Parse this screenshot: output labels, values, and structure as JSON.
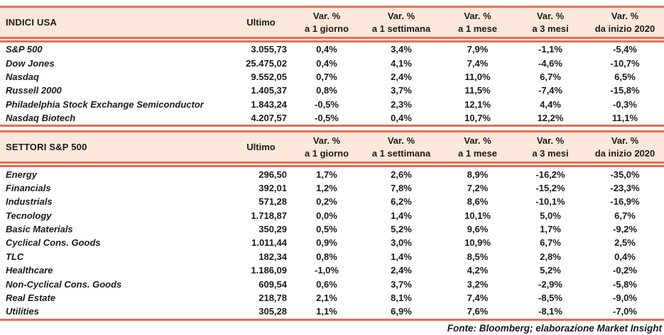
{
  "accent": {
    "line_color": "#ee6b4e",
    "header_bg": "#fbe8da",
    "text_color": "#1a1a1a"
  },
  "columns": {
    "value_label": "Ultimo",
    "var_label": "Var. %",
    "periods": [
      "a 1 giorno",
      "a 1 settimana",
      "a 1 mese",
      "a 3 mesi",
      "da inizio 2020"
    ]
  },
  "sections": [
    {
      "title": "INDICI USA",
      "rows": [
        {
          "name": "S&P 500",
          "ultimo": "3.055,73",
          "vars": [
            "0,4%",
            "3,4%",
            "7,9%",
            "-1,1%",
            "-5,4%"
          ]
        },
        {
          "name": "Dow Jones",
          "ultimo": "25.475,02",
          "vars": [
            "0,4%",
            "4,1%",
            "7,4%",
            "-4,6%",
            "-10,7%"
          ]
        },
        {
          "name": "Nasdaq",
          "ultimo": "9.552,05",
          "vars": [
            "0,7%",
            "2,4%",
            "11,0%",
            "6,7%",
            "6,5%"
          ]
        },
        {
          "name": "Russell 2000",
          "ultimo": "1.405,37",
          "vars": [
            "0,8%",
            "3,7%",
            "11,5%",
            "-7,4%",
            "-15,8%"
          ]
        },
        {
          "name": "Philadelphia Stock Exchange Semiconductor",
          "ultimo": "1.843,24",
          "vars": [
            "-0,5%",
            "2,3%",
            "12,1%",
            "4,4%",
            "-0,3%"
          ]
        },
        {
          "name": "Nasdaq Biotech",
          "ultimo": "4.207,57",
          "vars": [
            "-0,5%",
            "0,4%",
            "10,7%",
            "12,2%",
            "11,1%"
          ]
        }
      ]
    },
    {
      "title": "SETTORI S&P 500",
      "rows": [
        {
          "name": "Energy",
          "ultimo": "296,50",
          "vars": [
            "1,7%",
            "2,6%",
            "8,9%",
            "-16,2%",
            "-35,0%"
          ]
        },
        {
          "name": "Financials",
          "ultimo": "392,01",
          "vars": [
            "1,2%",
            "7,8%",
            "7,2%",
            "-15,2%",
            "-23,3%"
          ]
        },
        {
          "name": "Industrials",
          "ultimo": "571,28",
          "vars": [
            "0,2%",
            "6,2%",
            "8,6%",
            "-10,1%",
            "-16,9%"
          ]
        },
        {
          "name": "Tecnology",
          "ultimo": "1.718,87",
          "vars": [
            "0,0%",
            "1,4%",
            "10,1%",
            "5,0%",
            "6,7%"
          ]
        },
        {
          "name": "Basic Materials",
          "ultimo": "350,29",
          "vars": [
            "0,5%",
            "5,2%",
            "9,6%",
            "1,7%",
            "-9,2%"
          ]
        },
        {
          "name": "Cyclical Cons. Goods",
          "ultimo": "1.011,44",
          "vars": [
            "0,9%",
            "3,0%",
            "10,9%",
            "6,7%",
            "2,5%"
          ]
        },
        {
          "name": "TLC",
          "ultimo": "182,34",
          "vars": [
            "0,8%",
            "1,4%",
            "8,5%",
            "2,8%",
            "0,4%"
          ]
        },
        {
          "name": "Healthcare",
          "ultimo": "1.186,09",
          "vars": [
            "-1,0%",
            "2,4%",
            "4,2%",
            "5,2%",
            "-0,2%"
          ]
        },
        {
          "name": "Non-Cyclical Cons. Goods",
          "ultimo": "609,54",
          "vars": [
            "0,6%",
            "3,7%",
            "3,2%",
            "-2,9%",
            "-5,8%"
          ]
        },
        {
          "name": "Real Estate",
          "ultimo": "218,78",
          "vars": [
            "2,1%",
            "8,1%",
            "7,4%",
            "-8,5%",
            "-9,0%"
          ]
        },
        {
          "name": "Utilities",
          "ultimo": "305,28",
          "vars": [
            "1,1%",
            "6,9%",
            "7,6%",
            "-8,1%",
            "-7,0%"
          ]
        }
      ]
    }
  ],
  "footer": "Fonte: Bloomberg; elaborazione Market Insight",
  "chart_data": [
    {
      "type": "table",
      "title": "INDICI USA",
      "columns": [
        "Ultimo",
        "Var. % a 1 giorno",
        "Var. % a 1 settimana",
        "Var. % a 1 mese",
        "Var. % a 3 mesi",
        "Var. % da inizio 2020"
      ],
      "rows": [
        [
          "S&P 500",
          "3.055,73",
          "0,4%",
          "3,4%",
          "7,9%",
          "-1,1%",
          "-5,4%"
        ],
        [
          "Dow Jones",
          "25.475,02",
          "0,4%",
          "4,1%",
          "7,4%",
          "-4,6%",
          "-10,7%"
        ],
        [
          "Nasdaq",
          "9.552,05",
          "0,7%",
          "2,4%",
          "11,0%",
          "6,7%",
          "6,5%"
        ],
        [
          "Russell 2000",
          "1.405,37",
          "0,8%",
          "3,7%",
          "11,5%",
          "-7,4%",
          "-15,8%"
        ],
        [
          "Philadelphia Stock Exchange Semiconductor",
          "1.843,24",
          "-0,5%",
          "2,3%",
          "12,1%",
          "4,4%",
          "-0,3%"
        ],
        [
          "Nasdaq Biotech",
          "4.207,57",
          "-0,5%",
          "0,4%",
          "10,7%",
          "12,2%",
          "11,1%"
        ]
      ]
    },
    {
      "type": "table",
      "title": "SETTORI S&P 500",
      "columns": [
        "Ultimo",
        "Var. % a 1 giorno",
        "Var. % a 1 settimana",
        "Var. % a 1 mese",
        "Var. % a 3 mesi",
        "Var. % da inizio 2020"
      ],
      "rows": [
        [
          "Energy",
          "296,50",
          "1,7%",
          "2,6%",
          "8,9%",
          "-16,2%",
          "-35,0%"
        ],
        [
          "Financials",
          "392,01",
          "1,2%",
          "7,8%",
          "7,2%",
          "-15,2%",
          "-23,3%"
        ],
        [
          "Industrials",
          "571,28",
          "0,2%",
          "6,2%",
          "8,6%",
          "-10,1%",
          "-16,9%"
        ],
        [
          "Tecnology",
          "1.718,87",
          "0,0%",
          "1,4%",
          "10,1%",
          "5,0%",
          "6,7%"
        ],
        [
          "Basic Materials",
          "350,29",
          "0,5%",
          "5,2%",
          "9,6%",
          "1,7%",
          "-9,2%"
        ],
        [
          "Cyclical Cons. Goods",
          "1.011,44",
          "0,9%",
          "3,0%",
          "10,9%",
          "6,7%",
          "2,5%"
        ],
        [
          "TLC",
          "182,34",
          "0,8%",
          "1,4%",
          "8,5%",
          "2,8%",
          "0,4%"
        ],
        [
          "Healthcare",
          "1.186,09",
          "-1,0%",
          "2,4%",
          "4,2%",
          "5,2%",
          "-0,2%"
        ],
        [
          "Non-Cyclical Cons. Goods",
          "609,54",
          "0,6%",
          "3,7%",
          "3,2%",
          "-2,9%",
          "-5,8%"
        ],
        [
          "Real Estate",
          "218,78",
          "2,1%",
          "8,1%",
          "7,4%",
          "-8,5%",
          "-9,0%"
        ],
        [
          "Utilities",
          "305,28",
          "1,1%",
          "6,9%",
          "7,6%",
          "-8,1%",
          "-7,0%"
        ]
      ]
    }
  ]
}
